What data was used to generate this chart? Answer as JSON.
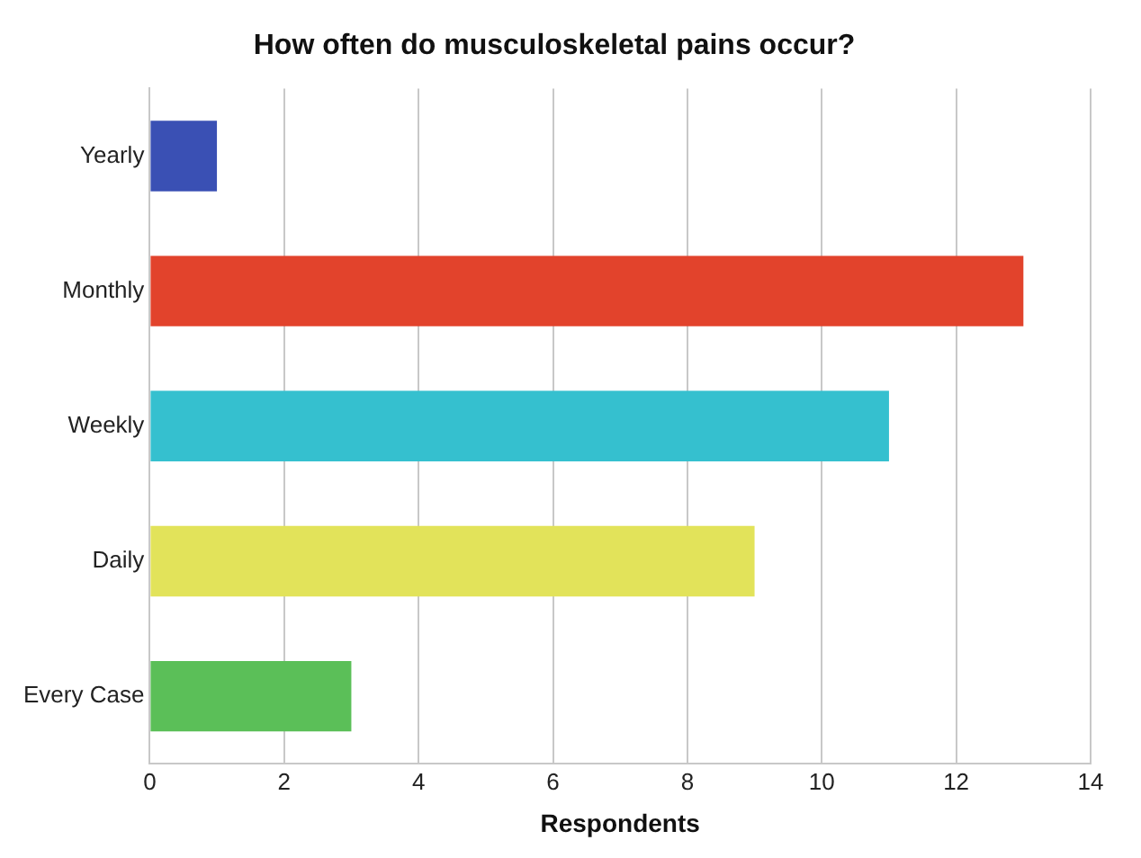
{
  "chart_data": {
    "type": "bar",
    "orientation": "horizontal",
    "title": "How often do musculoskeletal pains occur?",
    "xlabel": "Respondents",
    "categories": [
      "Yearly",
      "Monthly",
      "Weekly",
      "Daily",
      "Every Case"
    ],
    "values": [
      1,
      13,
      11,
      9,
      3
    ],
    "colors": [
      "#3a50b4",
      "#e2432c",
      "#35c0cf",
      "#e2e35a",
      "#5bbf58"
    ],
    "xlim": [
      0,
      14
    ],
    "xticks": [
      0,
      2,
      4,
      6,
      8,
      10,
      12,
      14
    ],
    "grid": "x",
    "legend": false
  }
}
